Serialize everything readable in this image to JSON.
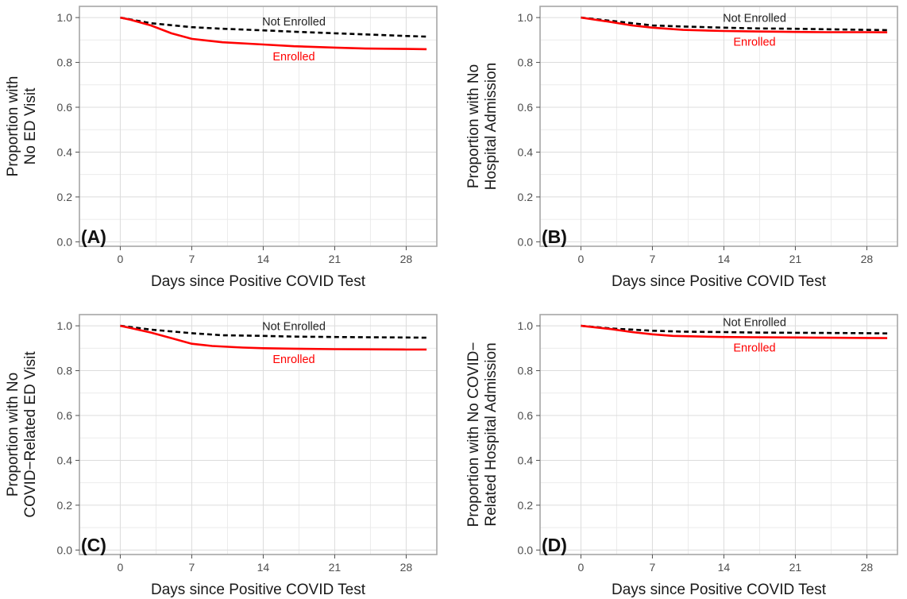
{
  "chart_data": [
    {
      "type": "line",
      "panel_tag": "(A)",
      "ylabel_lines": [
        "Proportion with",
        "No ED Visit"
      ],
      "xlabel": "Days since Positive COVID Test",
      "xlim": [
        -4,
        31
      ],
      "ylim": [
        -0.02,
        1.05
      ],
      "xticks": [
        0,
        7,
        14,
        21,
        28
      ],
      "xtick_labels": [
        "0",
        "7",
        "14",
        "21",
        "28"
      ],
      "yticks": [
        0.0,
        0.2,
        0.4,
        0.6,
        0.8,
        1.0
      ],
      "ytick_labels": [
        "0.0",
        "0.2",
        "0.4",
        "0.6",
        "0.8",
        "1.0"
      ],
      "grid": true,
      "series": [
        {
          "name": "Not Enrolled",
          "color": "#000000",
          "line_style": "dashed",
          "x": [
            0,
            3,
            7,
            10,
            14,
            17,
            21,
            24,
            28,
            30
          ],
          "y": [
            1.0,
            0.975,
            0.957,
            0.95,
            0.943,
            0.937,
            0.93,
            0.925,
            0.918,
            0.915
          ]
        },
        {
          "name": "Enrolled",
          "color": "#ff0000",
          "line_style": "solid",
          "x": [
            0,
            1,
            3,
            5,
            7,
            10,
            14,
            17,
            21,
            24,
            28,
            30
          ],
          "y": [
            1.0,
            0.99,
            0.965,
            0.93,
            0.905,
            0.89,
            0.88,
            0.872,
            0.866,
            0.862,
            0.86,
            0.859
          ]
        }
      ]
    },
    {
      "type": "line",
      "panel_tag": "(B)",
      "ylabel_lines": [
        "Proportion with No",
        "Hospital Admission"
      ],
      "xlabel": "Days since Positive COVID Test",
      "xlim": [
        -4,
        31
      ],
      "ylim": [
        -0.02,
        1.05
      ],
      "xticks": [
        0,
        7,
        14,
        21,
        28
      ],
      "xtick_labels": [
        "0",
        "7",
        "14",
        "21",
        "28"
      ],
      "yticks": [
        0.0,
        0.2,
        0.4,
        0.6,
        0.8,
        1.0
      ],
      "ytick_labels": [
        "0.0",
        "0.2",
        "0.4",
        "0.6",
        "0.8",
        "1.0"
      ],
      "grid": true,
      "series": [
        {
          "name": "Not Enrolled",
          "color": "#000000",
          "line_style": "dashed",
          "x": [
            0,
            3,
            7,
            10,
            14,
            17,
            21,
            24,
            28,
            30
          ],
          "y": [
            1.0,
            0.985,
            0.965,
            0.96,
            0.955,
            0.952,
            0.95,
            0.948,
            0.945,
            0.944
          ]
        },
        {
          "name": "Enrolled",
          "color": "#ff0000",
          "line_style": "solid",
          "x": [
            0,
            3,
            5,
            7,
            10,
            14,
            17,
            21,
            24,
            28,
            30
          ],
          "y": [
            1.0,
            0.98,
            0.965,
            0.955,
            0.945,
            0.94,
            0.938,
            0.936,
            0.935,
            0.935,
            0.934
          ]
        }
      ]
    },
    {
      "type": "line",
      "panel_tag": "(C)",
      "ylabel_lines": [
        "Proportion with No",
        "COVID−Related ED Visit"
      ],
      "xlabel": "Days since Positive COVID Test",
      "xlim": [
        -4,
        31
      ],
      "ylim": [
        -0.02,
        1.05
      ],
      "xticks": [
        0,
        7,
        14,
        21,
        28
      ],
      "xtick_labels": [
        "0",
        "7",
        "14",
        "21",
        "28"
      ],
      "yticks": [
        0.0,
        0.2,
        0.4,
        0.6,
        0.8,
        1.0
      ],
      "ytick_labels": [
        "0.0",
        "0.2",
        "0.4",
        "0.6",
        "0.8",
        "1.0"
      ],
      "grid": true,
      "series": [
        {
          "name": "Not Enrolled",
          "color": "#000000",
          "line_style": "dashed",
          "x": [
            0,
            3,
            7,
            10,
            14,
            17,
            21,
            24,
            28,
            30
          ],
          "y": [
            1.0,
            0.983,
            0.967,
            0.958,
            0.955,
            0.952,
            0.95,
            0.949,
            0.948,
            0.947
          ]
        },
        {
          "name": "Enrolled",
          "color": "#ff0000",
          "line_style": "solid",
          "x": [
            0,
            1,
            3,
            5,
            7,
            9,
            12,
            14,
            17,
            21,
            24,
            28,
            30
          ],
          "y": [
            1.0,
            0.99,
            0.97,
            0.945,
            0.92,
            0.91,
            0.903,
            0.9,
            0.898,
            0.896,
            0.895,
            0.894,
            0.894
          ]
        }
      ]
    },
    {
      "type": "line",
      "panel_tag": "(D)",
      "ylabel_lines": [
        "Proportion with No COVID−",
        "Related Hospital Admission"
      ],
      "xlabel": "Days since Positive COVID Test",
      "xlim": [
        -4,
        31
      ],
      "ylim": [
        -0.02,
        1.05
      ],
      "xticks": [
        0,
        7,
        14,
        21,
        28
      ],
      "xtick_labels": [
        "0",
        "7",
        "14",
        "21",
        "28"
      ],
      "yticks": [
        0.0,
        0.2,
        0.4,
        0.6,
        0.8,
        1.0
      ],
      "ytick_labels": [
        "0.0",
        "0.2",
        "0.4",
        "0.6",
        "0.8",
        "1.0"
      ],
      "grid": true,
      "series": [
        {
          "name": "Not Enrolled",
          "color": "#000000",
          "line_style": "dashed",
          "x": [
            0,
            3,
            7,
            10,
            14,
            17,
            21,
            24,
            28,
            30
          ],
          "y": [
            1.0,
            0.988,
            0.978,
            0.974,
            0.972,
            0.97,
            0.969,
            0.968,
            0.967,
            0.966
          ]
        },
        {
          "name": "Enrolled",
          "color": "#ff0000",
          "line_style": "solid",
          "x": [
            0,
            3,
            5,
            7,
            9,
            12,
            14,
            17,
            21,
            24,
            28,
            30
          ],
          "y": [
            1.0,
            0.985,
            0.972,
            0.962,
            0.955,
            0.952,
            0.95,
            0.949,
            0.948,
            0.947,
            0.946,
            0.945
          ]
        }
      ]
    }
  ]
}
